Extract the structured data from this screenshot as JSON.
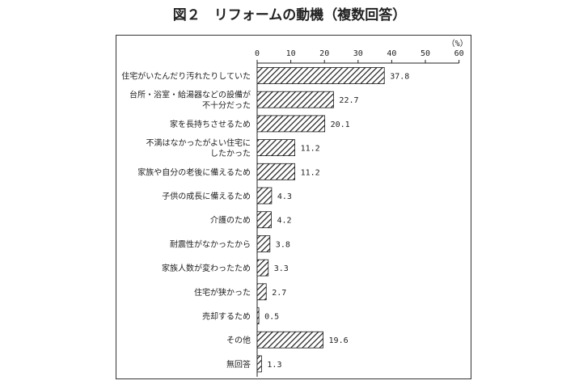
{
  "chart_data": {
    "type": "bar",
    "orientation": "horizontal",
    "title": "図２　リフォームの動機（複数回答）",
    "unit_label": "（%）",
    "xlim": [
      0,
      60
    ],
    "ticks": [
      0,
      10,
      20,
      30,
      40,
      50,
      60
    ],
    "categories": [
      [
        "住宅がいたんだり汚れたりしていた"
      ],
      [
        "台所・浴室・給湯器などの設備が",
        "不十分だった"
      ],
      [
        "家を長持ちさせるため"
      ],
      [
        "不満はなかったがよい住宅に",
        "したかった"
      ],
      [
        "家族や自分の老後に備えるため"
      ],
      [
        "子供の成長に備えるため"
      ],
      [
        "介護のため"
      ],
      [
        "耐震性がなかったから"
      ],
      [
        "家族人数が変わったため"
      ],
      [
        "住宅が狭かった"
      ],
      [
        "売却するため"
      ],
      [
        "その他"
      ],
      [
        "無回答"
      ]
    ],
    "values": [
      37.8,
      22.7,
      20.1,
      11.2,
      11.2,
      4.3,
      4.2,
      3.8,
      3.3,
      2.7,
      0.5,
      19.6,
      1.3
    ],
    "value_labels": [
      "37.8",
      "22.7",
      "20.1",
      "11.2",
      "11.2",
      "4.3",
      "4.2",
      "3.8",
      "3.3",
      "2.7",
      "0.5",
      "19.6",
      "1.3"
    ],
    "grid": false,
    "bar_style": "diagonal-hatch"
  }
}
